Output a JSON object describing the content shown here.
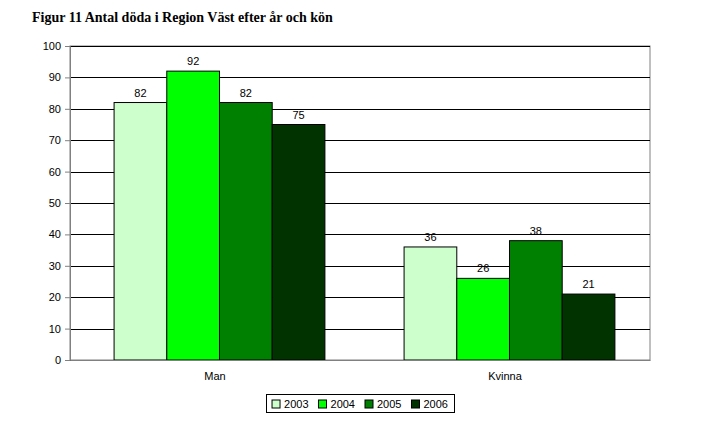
{
  "chart_data": {
    "type": "bar",
    "title": "Figur 11 Antal döda i Region Väst efter år och kön",
    "categories": [
      "Man",
      "Kvinna"
    ],
    "series": [
      {
        "name": "2003",
        "color": "#ccffcc",
        "values": [
          82,
          36
        ]
      },
      {
        "name": "2004",
        "color": "#00ff00",
        "values": [
          92,
          26
        ]
      },
      {
        "name": "2005",
        "color": "#008000",
        "values": [
          82,
          38
        ]
      },
      {
        "name": "2006",
        "color": "#003300",
        "values": [
          75,
          21
        ]
      }
    ],
    "ylim": [
      0,
      100
    ],
    "yticks": [
      0,
      10,
      20,
      30,
      40,
      50,
      60,
      70,
      80,
      90,
      100
    ],
    "grid": true,
    "legend": "bottom",
    "data_labels": true
  }
}
